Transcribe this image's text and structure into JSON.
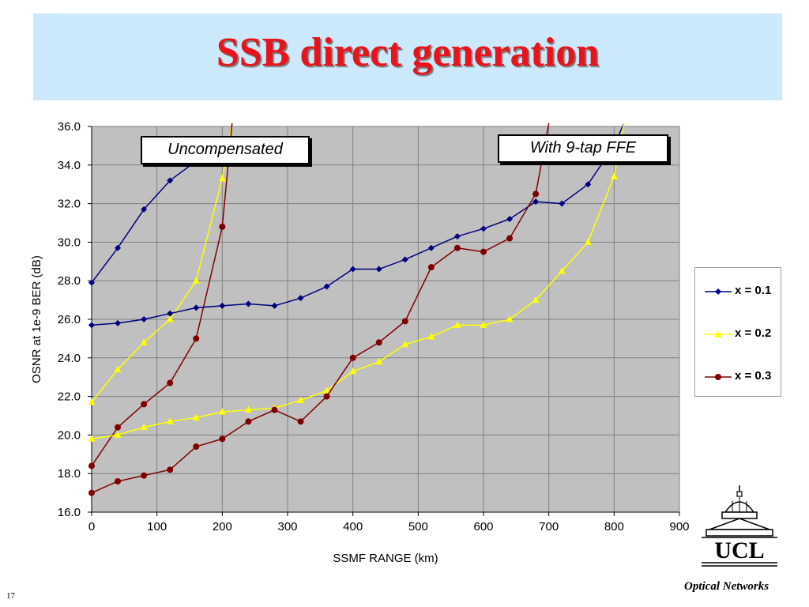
{
  "slide": {
    "title": "SSB direct generation",
    "footer": "Optical Networks",
    "page_number": "17",
    "logo_text": "UCL"
  },
  "annotations": {
    "uncompensated": "Uncompensated",
    "ffe": "With 9-tap FFE"
  },
  "colors": {
    "title": "#e8131b",
    "banner": "#cce9fb",
    "plot_bg": "#c0c0c0",
    "x01": "#000080",
    "x02": "#ffff00",
    "x03": "#800000"
  },
  "chart_data": {
    "type": "line",
    "title": "",
    "xlabel": "SSMF RANGE (km)",
    "ylabel": "OSNR at 1e-9 BER (dB)",
    "xlim": [
      0,
      900
    ],
    "ylim": [
      16,
      36
    ],
    "xticks": [
      0,
      100,
      200,
      300,
      400,
      500,
      600,
      700,
      800,
      900
    ],
    "yticks": [
      16,
      18,
      20,
      22,
      24,
      26,
      28,
      30,
      32,
      34,
      36
    ],
    "ytick_labels": [
      "16.0",
      "18.0",
      "20.0",
      "22.0",
      "24.0",
      "26.0",
      "28.0",
      "30.0",
      "32.0",
      "34.0",
      "36.0"
    ],
    "grid": true,
    "legend_position": "right",
    "series": [
      {
        "name": "x = 0.1",
        "group": "Uncompensated",
        "color": "#000080",
        "marker": "diamond",
        "x": [
          0,
          40,
          80,
          120,
          160
        ],
        "y": [
          27.9,
          29.7,
          31.7,
          33.2,
          34.2
        ]
      },
      {
        "name": "x = 0.2",
        "group": "Uncompensated",
        "color": "#ffff00",
        "marker": "triangle",
        "x": [
          0,
          40,
          80,
          120,
          160,
          200,
          215
        ],
        "y": [
          21.7,
          23.4,
          24.8,
          26.0,
          28.0,
          33.3,
          36.2
        ]
      },
      {
        "name": "x = 0.3",
        "group": "Uncompensated",
        "color": "#800000",
        "marker": "circle",
        "x": [
          0,
          40,
          80,
          120,
          160,
          200,
          215
        ],
        "y": [
          18.4,
          20.4,
          21.6,
          22.7,
          25.0,
          30.8,
          36.2
        ]
      },
      {
        "name": "x = 0.1",
        "group": "With 9-tap FFE",
        "color": "#000080",
        "marker": "diamond",
        "x": [
          0,
          40,
          80,
          120,
          160,
          200,
          240,
          280,
          320,
          360,
          400,
          440,
          480,
          520,
          560,
          600,
          640,
          680,
          720,
          760,
          800,
          815
        ],
        "y": [
          25.7,
          25.8,
          26.0,
          26.3,
          26.6,
          26.7,
          26.8,
          26.7,
          27.1,
          27.7,
          28.6,
          28.6,
          29.1,
          29.7,
          30.3,
          30.7,
          31.2,
          32.1,
          32.0,
          33.0,
          35.0,
          36.2
        ]
      },
      {
        "name": "x = 0.2",
        "group": "With 9-tap FFE",
        "color": "#ffff00",
        "marker": "triangle",
        "x": [
          0,
          40,
          80,
          120,
          160,
          200,
          240,
          280,
          320,
          360,
          400,
          440,
          480,
          520,
          560,
          600,
          640,
          680,
          720,
          760,
          800,
          815
        ],
        "y": [
          19.8,
          20.0,
          20.4,
          20.7,
          20.9,
          21.2,
          21.3,
          21.4,
          21.8,
          22.3,
          23.3,
          23.8,
          24.7,
          25.1,
          25.7,
          25.7,
          26.0,
          27.0,
          28.5,
          30.0,
          33.4,
          36.2
        ]
      },
      {
        "name": "x = 0.3",
        "group": "With 9-tap FFE",
        "color": "#800000",
        "marker": "circle",
        "x": [
          0,
          40,
          80,
          120,
          160,
          200,
          240,
          280,
          320,
          360,
          400,
          440,
          480,
          520,
          560,
          600,
          640,
          680,
          700
        ],
        "y": [
          17.0,
          17.6,
          17.9,
          18.2,
          19.4,
          19.8,
          20.7,
          21.3,
          20.7,
          22.0,
          24.0,
          24.8,
          25.9,
          28.7,
          29.7,
          29.5,
          30.2,
          32.5,
          36.2
        ]
      }
    ],
    "legend": [
      {
        "label": "x = 0.1",
        "color": "#000080",
        "marker": "diamond"
      },
      {
        "label": "x = 0.2",
        "color": "#ffff00",
        "marker": "triangle"
      },
      {
        "label": "x = 0.3",
        "color": "#800000",
        "marker": "circle"
      }
    ]
  }
}
